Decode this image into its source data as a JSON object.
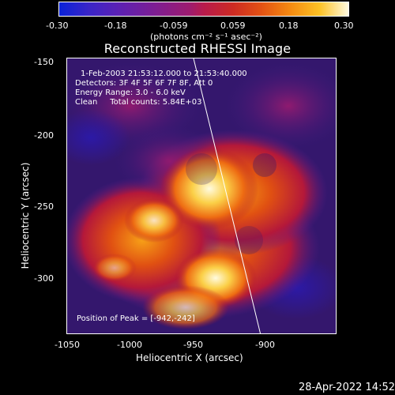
{
  "colorbar": {
    "tick_labels": [
      "-0.30",
      "-0.18",
      "-0.059",
      "0.059",
      "0.18",
      "0.30"
    ],
    "unit": "(photons cm⁻² s⁻¹ asec⁻²)"
  },
  "plot": {
    "title": "Reconstructed RHESSI Image",
    "annotations": {
      "time_range": "1-Feb-2003 21:53:12.000 to 21:53:40.000",
      "detectors": "Detectors: 3F 4F 5F 6F 7F 8F, Att 0",
      "energy": "Energy Range: 3.0 - 6.0 keV",
      "clean": "Clean     Total counts: 5.84E+03",
      "peak": "Position of Peak = [-942,-242]"
    },
    "axes": {
      "x_label": "Heliocentric X (arcsec)",
      "y_label": "Heliocentric Y (arcsec)",
      "x_ticks": [
        "-1050",
        "-1000",
        "-950",
        "-900"
      ],
      "y_ticks": [
        "-150",
        "-200",
        "-250",
        "-300"
      ]
    }
  },
  "footer": {
    "timestamp": "28-Apr-2022 14:52"
  },
  "colors": {
    "background": "#000000",
    "foreground": "#ffffff",
    "low": "#1d13a8",
    "mid": "#c11d1d",
    "high": "#fff6a8"
  }
}
